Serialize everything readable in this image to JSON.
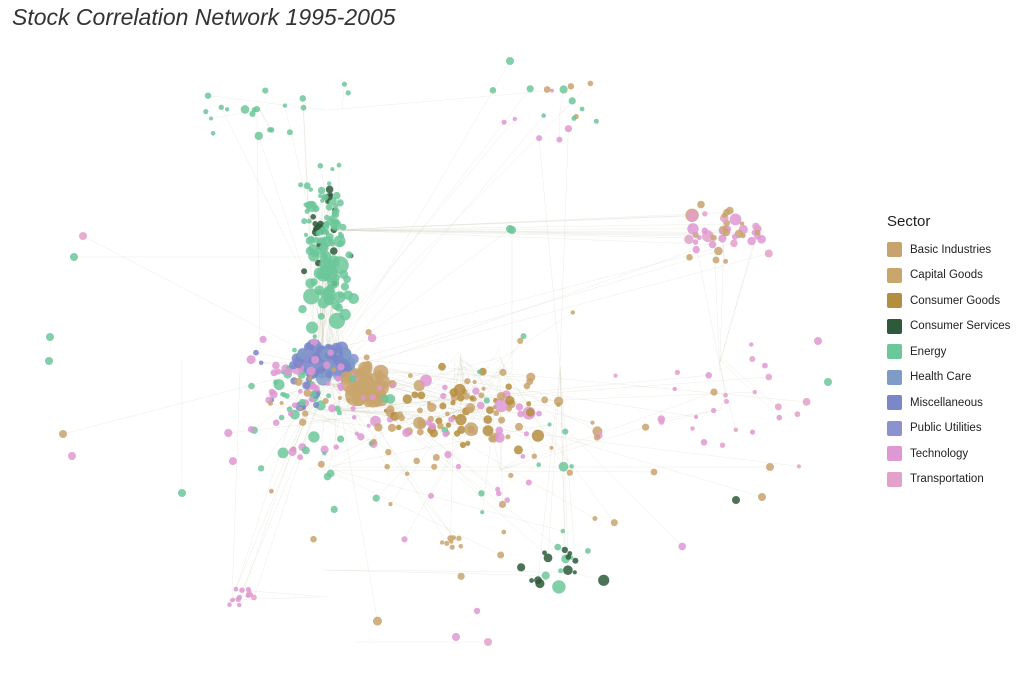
{
  "title": "Stock Correlation Network 1995-2005",
  "legend": {
    "title": "Sector",
    "items": [
      {
        "label": "Basic Industries",
        "color": "#c9a36f"
      },
      {
        "label": "Capital Goods",
        "color": "#c8a66c"
      },
      {
        "label": "Consumer Goods",
        "color": "#b58d3e"
      },
      {
        "label": "Consumer Services",
        "color": "#2d5a3a"
      },
      {
        "label": "Energy",
        "color": "#6cc79a"
      },
      {
        "label": "Health Care",
        "color": "#7f9cc8"
      },
      {
        "label": "Miscellaneous",
        "color": "#7a87c9"
      },
      {
        "label": "Public Utilities",
        "color": "#8a92cf"
      },
      {
        "label": "Technology",
        "color": "#de98d4"
      },
      {
        "label": "Transportation",
        "color": "#e3a0c9"
      }
    ]
  }
}
